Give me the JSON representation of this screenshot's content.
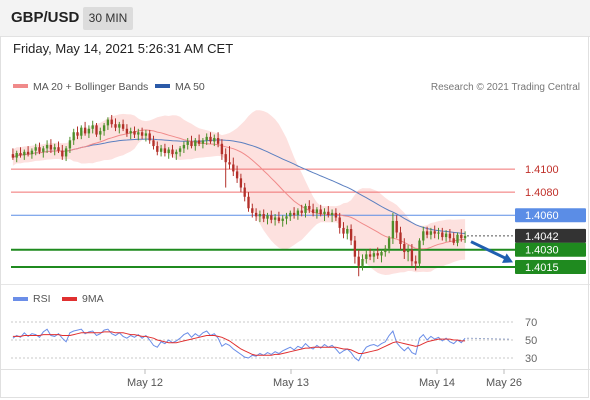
{
  "header": {
    "symbol": "GBP/USD",
    "timeframe": "30 MIN"
  },
  "datetime": "Friday, May 14, 2021 5:26:31 AM CET",
  "legend": {
    "ma20": "MA 20 + Bollinger Bands",
    "ma50": "MA 50",
    "rsi": "RSI",
    "rsi_ma": "9MA",
    "copyright": "Research © 2021 Trading Central"
  },
  "colors": {
    "bullish": "#4d8f2a",
    "bearish": "#b3302a",
    "bollinger_band": "#fde1df",
    "ma20": "#f08a8a",
    "ma50": "#5a7fc0",
    "resistance": "#f07070",
    "pivot": "#5b8de6",
    "support": "#1f8a1f",
    "current_price": "#333333",
    "forecast_arrow": "#1f5fb0",
    "rsi_line": "#6b8ee8",
    "rsi_ma_line": "#e03030"
  },
  "chart_data": [
    {
      "type": "candlestick",
      "title": "GBP/USD",
      "timeframe": "30 MIN",
      "x_labels": [
        "May 12",
        "May 13",
        "May 14",
        "May 26"
      ],
      "ylim": [
        1.4002,
        1.416
      ],
      "levels": [
        {
          "label": "1.4100",
          "value": 1.41,
          "kind": "resistance"
        },
        {
          "label": "1.4080",
          "value": 1.408,
          "kind": "resistance"
        },
        {
          "label": "1.4060",
          "value": 1.406,
          "kind": "pivot"
        },
        {
          "label": "1.4042",
          "value": 1.4042,
          "kind": "current"
        },
        {
          "label": "1.4030",
          "value": 1.403,
          "kind": "support"
        },
        {
          "label": "1.4015",
          "value": 1.4015,
          "kind": "support"
        }
      ],
      "forecast": {
        "from": 1.4037,
        "to": 1.4019,
        "direction": "down"
      },
      "candles": [
        [
          1.4113,
          1.4118,
          1.4108,
          1.411
        ],
        [
          1.411,
          1.4116,
          1.4106,
          1.4114
        ],
        [
          1.4114,
          1.4119,
          1.411,
          1.4112
        ],
        [
          1.4112,
          1.4117,
          1.4108,
          1.4115
        ],
        [
          1.4115,
          1.412,
          1.4111,
          1.4113
        ],
        [
          1.4113,
          1.4118,
          1.4109,
          1.4116
        ],
        [
          1.4116,
          1.4122,
          1.4112,
          1.4119
        ],
        [
          1.4119,
          1.4123,
          1.4113,
          1.4115
        ],
        [
          1.4115,
          1.412,
          1.411,
          1.4118
        ],
        [
          1.4118,
          1.4125,
          1.4114,
          1.4121
        ],
        [
          1.4121,
          1.4126,
          1.4114,
          1.4117
        ],
        [
          1.4117,
          1.4122,
          1.4112,
          1.4119
        ],
        [
          1.4119,
          1.4124,
          1.4114,
          1.4116
        ],
        [
          1.4116,
          1.4121,
          1.4108,
          1.4111
        ],
        [
          1.4111,
          1.412,
          1.4107,
          1.4118
        ],
        [
          1.4118,
          1.4128,
          1.4114,
          1.4125
        ],
        [
          1.4125,
          1.4135,
          1.4121,
          1.4132
        ],
        [
          1.4132,
          1.4137,
          1.4126,
          1.4129
        ],
        [
          1.4129,
          1.4138,
          1.4126,
          1.4136
        ],
        [
          1.4136,
          1.4141,
          1.4129,
          1.4131
        ],
        [
          1.4131,
          1.4138,
          1.4127,
          1.4135
        ],
        [
          1.4135,
          1.4142,
          1.4131,
          1.4138
        ],
        [
          1.4138,
          1.414,
          1.4128,
          1.413
        ],
        [
          1.413,
          1.4136,
          1.4125,
          1.4133
        ],
        [
          1.4133,
          1.414,
          1.4129,
          1.4138
        ],
        [
          1.4138,
          1.4145,
          1.4134,
          1.4143
        ],
        [
          1.4143,
          1.4147,
          1.4136,
          1.4139
        ],
        [
          1.4139,
          1.4144,
          1.4133,
          1.4136
        ],
        [
          1.4136,
          1.4141,
          1.4131,
          1.4139
        ],
        [
          1.4139,
          1.4143,
          1.4133,
          1.4135
        ],
        [
          1.4135,
          1.4139,
          1.4128,
          1.4131
        ],
        [
          1.4131,
          1.4136,
          1.4126,
          1.4133
        ],
        [
          1.4133,
          1.4137,
          1.4127,
          1.413
        ],
        [
          1.413,
          1.4135,
          1.4125,
          1.4132
        ],
        [
          1.4132,
          1.4136,
          1.4126,
          1.4129
        ],
        [
          1.4129,
          1.4134,
          1.4124,
          1.4131
        ],
        [
          1.4131,
          1.4134,
          1.4122,
          1.4125
        ],
        [
          1.4125,
          1.4129,
          1.4117,
          1.412
        ],
        [
          1.412,
          1.4124,
          1.4112,
          1.4115
        ],
        [
          1.4115,
          1.4121,
          1.4111,
          1.4118
        ],
        [
          1.4118,
          1.4122,
          1.4111,
          1.4114
        ],
        [
          1.4114,
          1.4119,
          1.4109,
          1.4117
        ],
        [
          1.4117,
          1.4121,
          1.411,
          1.4113
        ],
        [
          1.4113,
          1.4117,
          1.4108,
          1.4115
        ],
        [
          1.4115,
          1.412,
          1.4111,
          1.4118
        ],
        [
          1.4118,
          1.4124,
          1.4114,
          1.4121
        ],
        [
          1.4121,
          1.4127,
          1.4117,
          1.4124
        ],
        [
          1.4124,
          1.4129,
          1.4118,
          1.412
        ],
        [
          1.412,
          1.4127,
          1.4116,
          1.4125
        ],
        [
          1.4125,
          1.413,
          1.412,
          1.4122
        ],
        [
          1.4122,
          1.4127,
          1.4118,
          1.4125
        ],
        [
          1.4125,
          1.4131,
          1.4121,
          1.4128
        ],
        [
          1.4128,
          1.4132,
          1.4122,
          1.4124
        ],
        [
          1.4124,
          1.413,
          1.412,
          1.4127
        ],
        [
          1.4127,
          1.4132,
          1.4119,
          1.4122
        ],
        [
          1.4122,
          1.4126,
          1.4108,
          1.4113
        ],
        [
          1.4113,
          1.4118,
          1.4084,
          1.4106
        ],
        [
          1.4106,
          1.412,
          1.41,
          1.4104
        ],
        [
          1.4104,
          1.411,
          1.4094,
          1.4098
        ],
        [
          1.4098,
          1.4103,
          1.4088,
          1.4092
        ],
        [
          1.4092,
          1.4096,
          1.408,
          1.4084
        ],
        [
          1.4084,
          1.4088,
          1.4072,
          1.4076
        ],
        [
          1.4076,
          1.408,
          1.4063,
          1.4066
        ],
        [
          1.4066,
          1.407,
          1.4058,
          1.4062
        ],
        [
          1.4062,
          1.4066,
          1.4055,
          1.4059
        ],
        [
          1.4059,
          1.4064,
          1.4054,
          1.4061
        ],
        [
          1.4061,
          1.4065,
          1.4054,
          1.4057
        ],
        [
          1.4057,
          1.4062,
          1.4052,
          1.406
        ],
        [
          1.406,
          1.4064,
          1.4053,
          1.4056
        ],
        [
          1.4056,
          1.4061,
          1.4051,
          1.4058
        ],
        [
          1.4058,
          1.4063,
          1.4053,
          1.4055
        ],
        [
          1.4055,
          1.406,
          1.405,
          1.4057
        ],
        [
          1.4057,
          1.4062,
          1.4052,
          1.4059
        ],
        [
          1.4059,
          1.4064,
          1.4055,
          1.4062
        ],
        [
          1.4062,
          1.4067,
          1.4057,
          1.406
        ],
        [
          1.406,
          1.4066,
          1.4056,
          1.4064
        ],
        [
          1.4064,
          1.4069,
          1.4059,
          1.4062
        ],
        [
          1.4062,
          1.407,
          1.4058,
          1.4068
        ],
        [
          1.4068,
          1.4073,
          1.4062,
          1.4065
        ],
        [
          1.4065,
          1.407,
          1.4059,
          1.4062
        ],
        [
          1.4062,
          1.4067,
          1.4057,
          1.4065
        ],
        [
          1.4065,
          1.4069,
          1.4059,
          1.4061
        ],
        [
          1.4061,
          1.4066,
          1.4055,
          1.4063
        ],
        [
          1.4063,
          1.4068,
          1.4058,
          1.406
        ],
        [
          1.406,
          1.4065,
          1.4054,
          1.4062
        ],
        [
          1.4062,
          1.4066,
          1.4055,
          1.4058
        ],
        [
          1.4058,
          1.4062,
          1.4044,
          1.4049
        ],
        [
          1.4049,
          1.4054,
          1.404,
          1.4044
        ],
        [
          1.4044,
          1.4051,
          1.4039,
          1.4048
        ],
        [
          1.4048,
          1.4052,
          1.4034,
          1.4038
        ],
        [
          1.4038,
          1.4042,
          1.4018,
          1.4024
        ],
        [
          1.4024,
          1.403,
          1.4007,
          1.4016
        ],
        [
          1.4016,
          1.4026,
          1.4012,
          1.4022
        ],
        [
          1.4022,
          1.403,
          1.4018,
          1.4026
        ],
        [
          1.4026,
          1.4031,
          1.4021,
          1.4024
        ],
        [
          1.4024,
          1.4029,
          1.4019,
          1.4027
        ],
        [
          1.4027,
          1.4032,
          1.4022,
          1.4025
        ],
        [
          1.4025,
          1.403,
          1.4019,
          1.4028
        ],
        [
          1.4028,
          1.4034,
          1.4024,
          1.4031
        ],
        [
          1.4031,
          1.4042,
          1.4027,
          1.404
        ],
        [
          1.404,
          1.4062,
          1.4035,
          1.4055
        ],
        [
          1.4055,
          1.406,
          1.404,
          1.4045
        ],
        [
          1.4045,
          1.405,
          1.403,
          1.4035
        ],
        [
          1.4035,
          1.404,
          1.4022,
          1.4028
        ],
        [
          1.4028,
          1.4034,
          1.402,
          1.403
        ],
        [
          1.403,
          1.4035,
          1.4016,
          1.402
        ],
        [
          1.402,
          1.4025,
          1.4012,
          1.4018
        ],
        [
          1.4018,
          1.404,
          1.4014,
          1.4038
        ],
        [
          1.4038,
          1.405,
          1.4034,
          1.4046
        ],
        [
          1.4046,
          1.405,
          1.404,
          1.4043
        ],
        [
          1.4043,
          1.4049,
          1.4039,
          1.4046
        ],
        [
          1.4046,
          1.4051,
          1.404,
          1.4044
        ],
        [
          1.4044,
          1.4049,
          1.4039,
          1.4045
        ],
        [
          1.4045,
          1.4049,
          1.4038,
          1.4041
        ],
        [
          1.4041,
          1.4047,
          1.4037,
          1.4044
        ],
        [
          1.4044,
          1.4048,
          1.4037,
          1.404
        ],
        [
          1.404,
          1.4045,
          1.4034,
          1.4036
        ],
        [
          1.4036,
          1.4045,
          1.4033,
          1.4043
        ],
        [
          1.4043,
          1.4048,
          1.4037,
          1.404
        ],
        [
          1.404,
          1.4046,
          1.4036,
          1.4042
        ]
      ]
    },
    {
      "type": "line",
      "title": "RSI",
      "x_labels": [
        "May 12",
        "May 13",
        "May 14",
        "May 26"
      ],
      "y_ticks": [
        70,
        50,
        30
      ],
      "ylim": [
        20,
        80
      ],
      "series": [
        {
          "name": "RSI",
          "values": [
            52,
            55,
            53,
            58,
            54,
            57,
            56,
            53,
            59,
            62,
            55,
            54,
            57,
            52,
            48,
            58,
            60,
            61,
            62,
            57,
            59,
            60,
            55,
            57,
            61,
            62,
            57,
            55,
            58,
            54,
            52,
            55,
            53,
            56,
            52,
            55,
            50,
            44,
            42,
            48,
            46,
            50,
            47,
            49,
            52,
            56,
            58,
            53,
            57,
            54,
            58,
            60,
            55,
            57,
            52,
            43,
            46,
            44,
            40,
            37,
            34,
            31,
            30,
            33,
            32,
            35,
            33,
            36,
            34,
            37,
            35,
            38,
            40,
            42,
            39,
            43,
            41,
            46,
            42,
            40,
            44,
            41,
            45,
            42,
            44,
            40,
            35,
            38,
            40,
            36,
            30,
            27,
            36,
            42,
            44,
            45,
            43,
            46,
            48,
            55,
            60,
            47,
            42,
            38,
            42,
            36,
            34,
            52,
            56,
            50,
            54,
            51,
            53,
            49,
            52,
            48,
            46,
            50,
            47,
            52
          ]
        },
        {
          "name": "9MA",
          "values": [
            54,
            54,
            54,
            55,
            55,
            55,
            55,
            55,
            56,
            56,
            56,
            56,
            56,
            55,
            55,
            55,
            56,
            57,
            58,
            58,
            58,
            58,
            58,
            58,
            59,
            59,
            59,
            58,
            58,
            58,
            57,
            56,
            56,
            55,
            54,
            54,
            53,
            52,
            50,
            49,
            48,
            47,
            47,
            47,
            48,
            49,
            50,
            51,
            52,
            53,
            54,
            55,
            55,
            55,
            54,
            53,
            51,
            49,
            46,
            43,
            40,
            38,
            36,
            34,
            33,
            33,
            33,
            33,
            33,
            34,
            34,
            35,
            36,
            37,
            38,
            39,
            40,
            41,
            41,
            42,
            42,
            42,
            42,
            42,
            42,
            42,
            41,
            40,
            40,
            39,
            37,
            35,
            35,
            36,
            37,
            38,
            39,
            41,
            43,
            45,
            47,
            48,
            47,
            46,
            45,
            44,
            43,
            44,
            46,
            48,
            49,
            50,
            51,
            51,
            51,
            51,
            50,
            50,
            49,
            49
          ]
        }
      ]
    }
  ]
}
